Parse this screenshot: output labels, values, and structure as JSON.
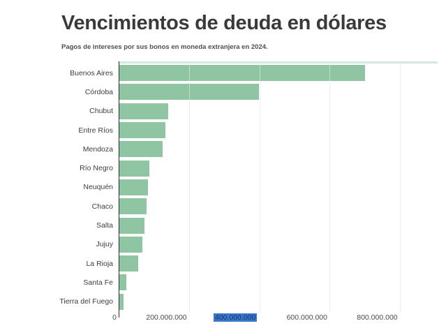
{
  "header": {
    "title": "Vencimientos de deuda en dólares",
    "subtitle": "Pagos de intereses por sus bonos en moneda extranjera en 2024."
  },
  "chart_data": {
    "type": "bar",
    "orientation": "horizontal",
    "title": "Vencimientos de deuda en dólares",
    "subtitle": "Pagos de intereses por sus bonos en moneda extranjera en 2024.",
    "xlabel": "",
    "ylabel": "",
    "grid": true,
    "xlim": [
      0,
      906000000
    ],
    "categories": [
      "Buenos Aires",
      "Córdoba",
      "Chubut",
      "Entre Ríos",
      "Mendoza",
      "Río Negro",
      "Neuquén",
      "Chaco",
      "Salta",
      "Jujuy",
      "La Rioja",
      "Santa Fe",
      "Tierra del Fuego"
    ],
    "values": [
      700000000,
      397000000,
      139000000,
      131000000,
      123000000,
      86000000,
      81000000,
      78000000,
      71000000,
      66000000,
      54000000,
      20000000,
      12000000
    ],
    "x_ticks": [
      {
        "value": 0,
        "label": "0",
        "selected": false
      },
      {
        "value": 200000000,
        "label": "200.000.000",
        "selected": false
      },
      {
        "value": 400000000,
        "label": "400.000.000",
        "selected": true
      },
      {
        "value": 600000000,
        "label": "600.000.000",
        "selected": false
      },
      {
        "value": 800000000,
        "label": "800.000.000",
        "selected": false
      }
    ]
  },
  "colors": {
    "bar": "#90c5a4",
    "plot_top_border": "#d4e9dd",
    "gridline": "#e0e0e0",
    "gridline_over_bar": "rgba(255,255,255,0.45)",
    "axis_line": "#2b2b2b",
    "title": "#3a3a3a",
    "subtitle": "#4f4f4f",
    "category_label": "#3d3d3d",
    "tick_label": "#4a4a4a",
    "selection_background": "#3b76cd",
    "selection_text": "#173a6b"
  }
}
